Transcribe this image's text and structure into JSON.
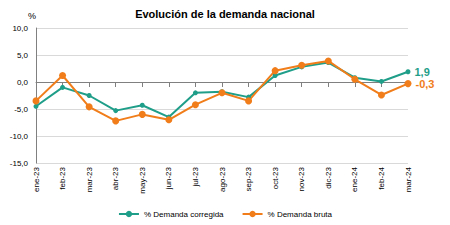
{
  "chart_data": {
    "type": "line",
    "title": "Evolución de la demanda nacional",
    "ylabel": "%",
    "categories": [
      "ene-23",
      "feb-23",
      "mar-23",
      "abr-23",
      "may-23",
      "jun-23",
      "jul-23",
      "ago-23",
      "sep-23",
      "oct-23",
      "nov-23",
      "dic-23",
      "ene-24",
      "feb-24",
      "mar-24"
    ],
    "series": [
      {
        "name": "% Demanda corregida",
        "color": "#1f9e89",
        "marker": "circle",
        "values": [
          -4.5,
          -1.0,
          -2.5,
          -5.3,
          -4.3,
          -6.5,
          -2.0,
          -1.8,
          -2.8,
          1.2,
          2.8,
          3.6,
          0.8,
          0.1,
          1.9
        ],
        "value_labels": [
          null,
          null,
          null,
          null,
          null,
          null,
          null,
          null,
          null,
          null,
          null,
          null,
          null,
          null,
          "1,9"
        ]
      },
      {
        "name": "% Demanda bruta",
        "color": "#f07d1a",
        "marker": "circle",
        "values": [
          -3.5,
          1.2,
          -4.6,
          -7.2,
          -6.0,
          -7.0,
          -4.2,
          -2.0,
          -3.5,
          2.1,
          3.1,
          3.9,
          0.5,
          -2.4,
          -0.3
        ],
        "value_labels": [
          null,
          null,
          null,
          null,
          null,
          null,
          null,
          null,
          null,
          null,
          null,
          null,
          null,
          null,
          "-0,3"
        ]
      }
    ],
    "ylim": [
      -15,
      10
    ],
    "yticks": [
      {
        "value": -15,
        "label": "-15,0"
      },
      {
        "value": -10,
        "label": "-10,0"
      },
      {
        "value": -5,
        "label": "-5,0"
      },
      {
        "value": 0,
        "label": "0,0"
      },
      {
        "value": 5,
        "label": "5,0"
      },
      {
        "value": 10,
        "label": "10,0"
      }
    ],
    "grid": true,
    "legend": "bottom"
  }
}
